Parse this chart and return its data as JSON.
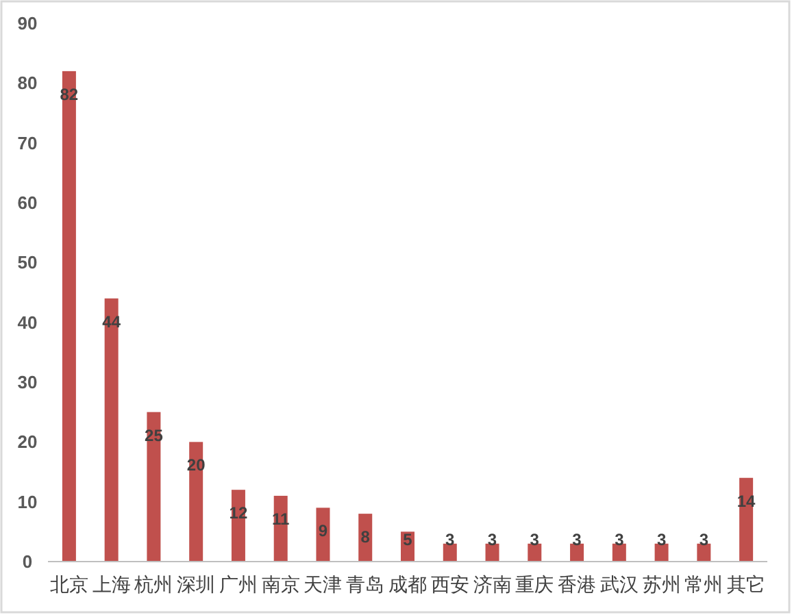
{
  "chart_data": {
    "type": "bar",
    "categories": [
      "北京",
      "上海",
      "杭州",
      "深圳",
      "广州",
      "南京",
      "天津",
      "青岛",
      "成都",
      "西安",
      "济南",
      "重庆",
      "香港",
      "武汉",
      "苏州",
      "常州",
      "其它"
    ],
    "values": [
      82,
      44,
      25,
      20,
      12,
      11,
      9,
      8,
      5,
      3,
      3,
      3,
      3,
      3,
      3,
      3,
      14
    ],
    "color": "#c0504d",
    "ylim": [
      0,
      90
    ],
    "yticks": [
      0,
      10,
      20,
      30,
      40,
      50,
      60,
      70,
      80,
      90
    ],
    "data_labels": true,
    "grid": false,
    "legend": false
  }
}
